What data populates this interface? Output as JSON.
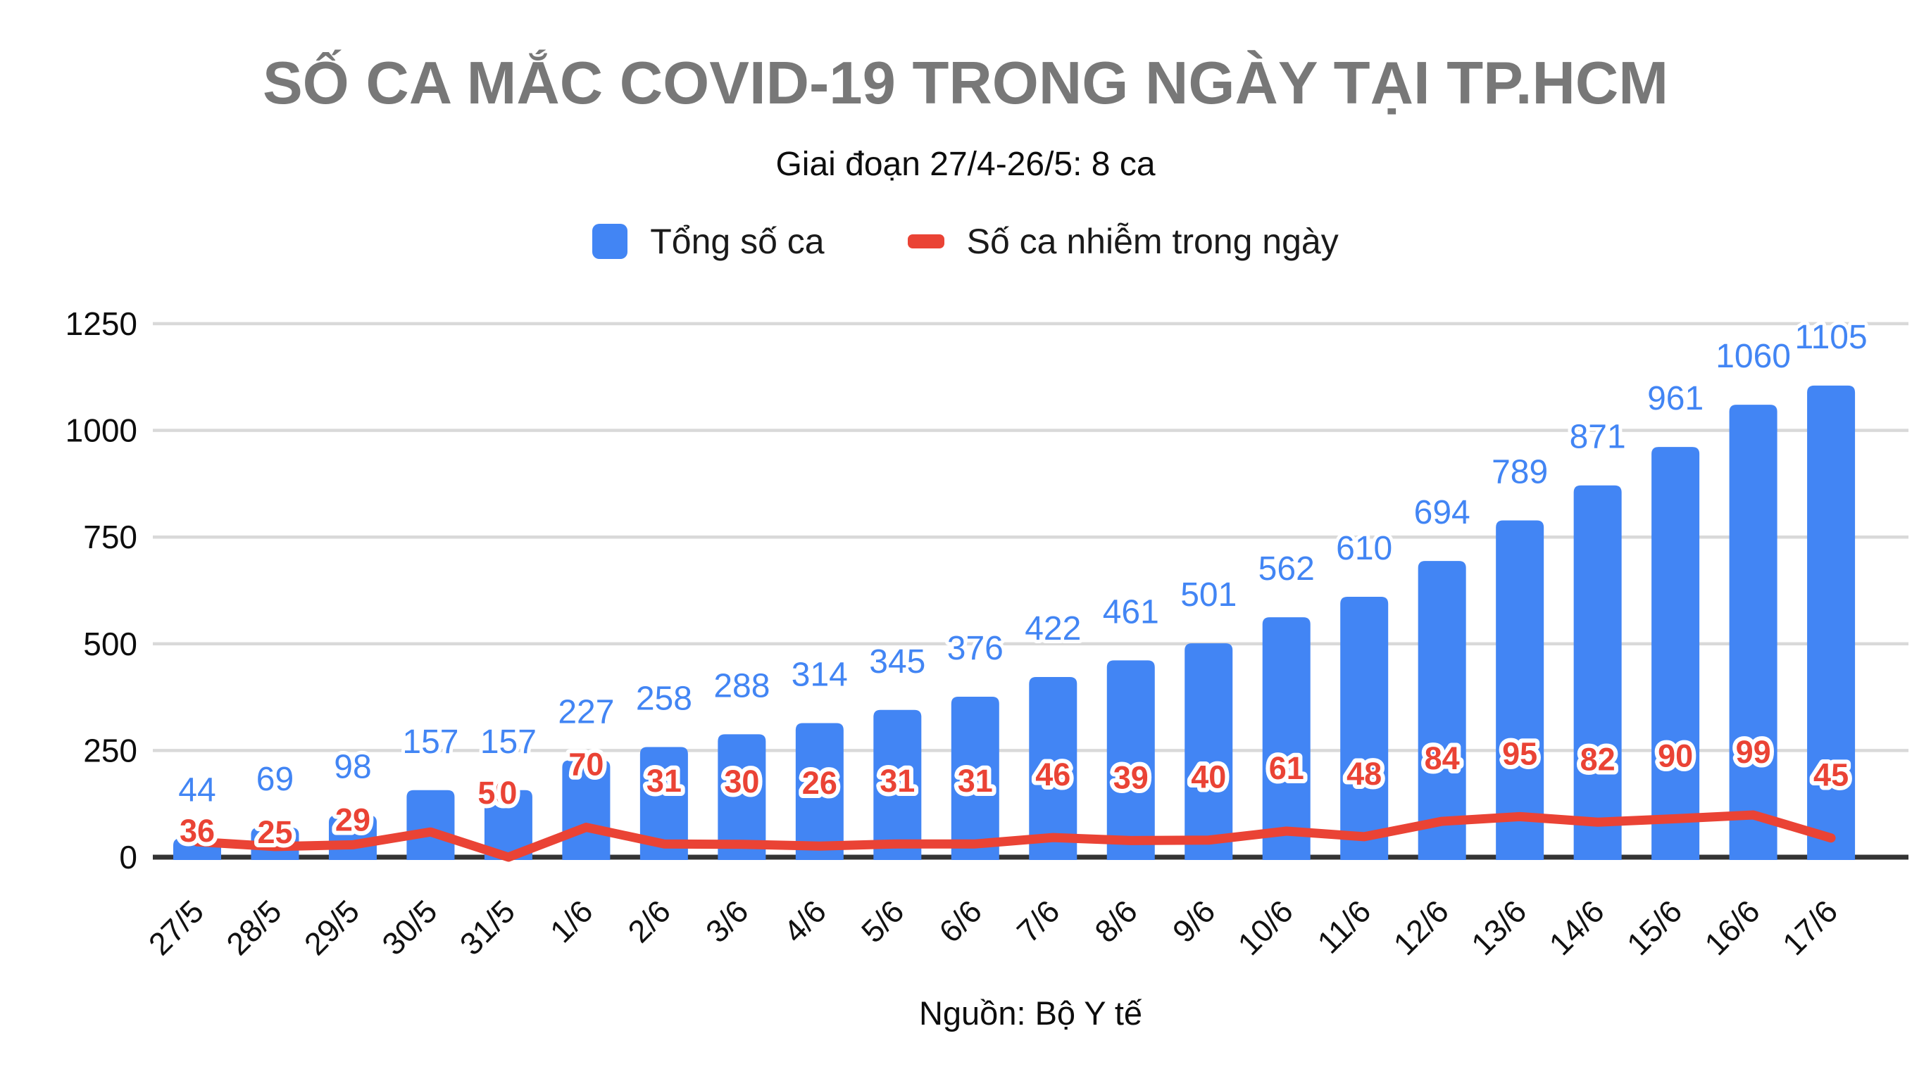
{
  "page": {
    "title": "SỐ CA MẮC COVID-19 TRONG NGÀY TẠI TP.HCM",
    "subtitle": "Giai đoạn 27/4-26/5: 8 ca",
    "source": "Nguồn: Bộ Y tế"
  },
  "legend": {
    "items": [
      {
        "label": "Tổng số ca",
        "color": "#4285F4",
        "swatch": "square"
      },
      {
        "label": "Số ca nhiễm trong ngày",
        "color": "#EA4335",
        "swatch": "line"
      }
    ]
  },
  "chart_data": {
    "type": "bar",
    "subtype": "bar+line combo",
    "categories": [
      "27/5",
      "28/5",
      "29/5",
      "30/5",
      "31/5",
      "1/6",
      "2/6",
      "3/6",
      "4/6",
      "5/6",
      "6/6",
      "7/6",
      "8/6",
      "9/6",
      "10/6",
      "11/6",
      "12/6",
      "13/6",
      "14/6",
      "15/6",
      "16/6",
      "17/6"
    ],
    "series": [
      {
        "name": "Tổng số ca",
        "type": "bar",
        "color": "#4285F4",
        "values": [
          44,
          69,
          98,
          157,
          157,
          227,
          258,
          288,
          314,
          345,
          376,
          422,
          461,
          501,
          562,
          610,
          694,
          789,
          871,
          961,
          1060,
          1105
        ]
      },
      {
        "name": "Số ca nhiễm trong ngày",
        "type": "line",
        "color": "#EA4335",
        "values": [
          36,
          25,
          29,
          59,
          0,
          70,
          31,
          30,
          26,
          31,
          31,
          46,
          39,
          40,
          61,
          48,
          84,
          95,
          82,
          90,
          99,
          45
        ]
      }
    ],
    "title": "SỐ CA MẮC COVID-19 TRONG NGÀY TẠI TP.HCM",
    "xlabel": "",
    "ylabel": "",
    "yticks": [
      0,
      250,
      500,
      750,
      1000,
      1250
    ],
    "ylim": [
      0,
      1250
    ],
    "grid": true,
    "legend_position": "top",
    "grid_color": "#D9D9D9",
    "axis_color": "#333333",
    "bar_label_color": "#4285F4",
    "line_label_color": "#EA4335"
  }
}
